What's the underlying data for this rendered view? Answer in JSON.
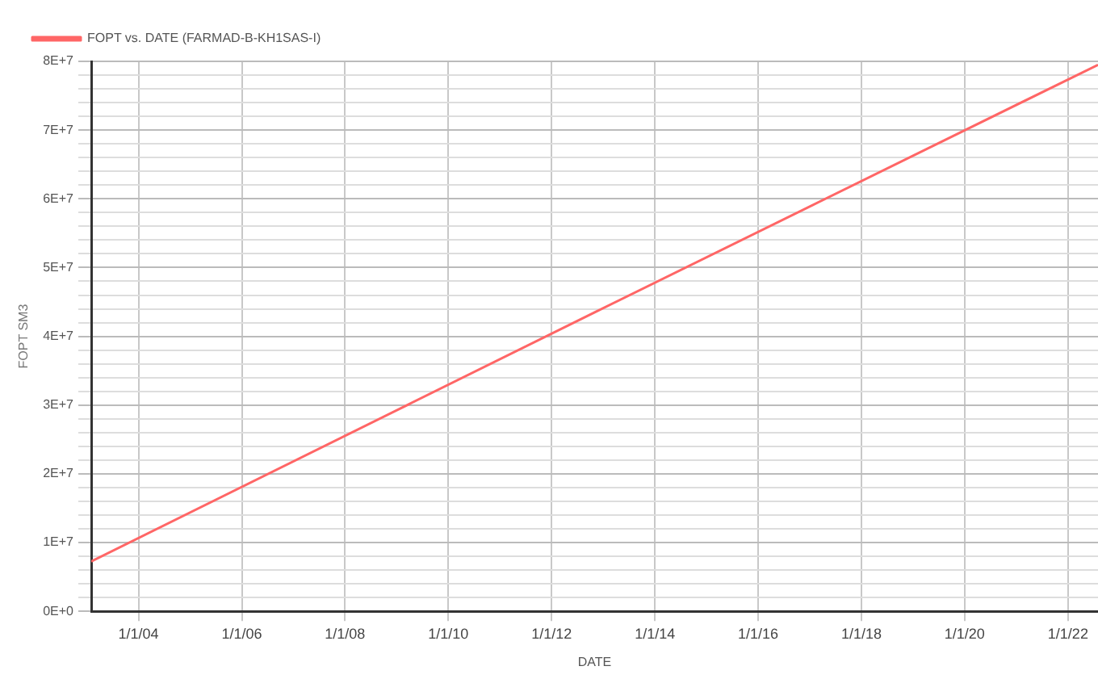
{
  "chart_data": {
    "type": "line",
    "xlabel": "DATE",
    "ylabel": "FOPT SM3",
    "legend": "top left",
    "grid": true,
    "marker": "none",
    "line_style": "solid",
    "x": [
      "2003-02",
      "2012-11",
      "2022-08"
    ],
    "series": [
      {
        "name": "FOPT vs. DATE (FARMAD-B-KH1SAS-I)",
        "color": "#ff6666",
        "values": [
          7250000,
          43500000,
          79500000
        ]
      }
    ],
    "xlim": [
      "2003-02",
      "2022-08"
    ],
    "xticks": [
      {
        "value": "2004-01-01",
        "label": "1/1/04"
      },
      {
        "value": "2006-01-01",
        "label": "1/1/06"
      },
      {
        "value": "2008-01-01",
        "label": "1/1/08"
      },
      {
        "value": "2010-01-01",
        "label": "1/1/10"
      },
      {
        "value": "2012-01-01",
        "label": "1/1/12"
      },
      {
        "value": "2014-01-01",
        "label": "1/1/14"
      },
      {
        "value": "2016-01-01",
        "label": "1/1/16"
      },
      {
        "value": "2018-01-01",
        "label": "1/1/18"
      },
      {
        "value": "2020-01-01",
        "label": "1/1/20"
      },
      {
        "value": "2022-01-01",
        "label": "1/1/22"
      }
    ],
    "ylim": [
      0,
      80000000
    ],
    "yticks": [
      {
        "value": 0,
        "label": "0E+0"
      },
      {
        "value": 2000000,
        "label": null
      },
      {
        "value": 4000000,
        "label": null
      },
      {
        "value": 6000000,
        "label": null
      },
      {
        "value": 8000000,
        "label": null
      },
      {
        "value": 10000000,
        "label": "1E+7"
      },
      {
        "value": 12000000,
        "label": null
      },
      {
        "value": 14000000,
        "label": null
      },
      {
        "value": 16000000,
        "label": null
      },
      {
        "value": 18000000,
        "label": null
      },
      {
        "value": 20000000,
        "label": "2E+7"
      },
      {
        "value": 22000000,
        "label": null
      },
      {
        "value": 24000000,
        "label": null
      },
      {
        "value": 26000000,
        "label": null
      },
      {
        "value": 28000000,
        "label": null
      },
      {
        "value": 30000000,
        "label": "3E+7"
      },
      {
        "value": 32000000,
        "label": null
      },
      {
        "value": 34000000,
        "label": null
      },
      {
        "value": 36000000,
        "label": null
      },
      {
        "value": 38000000,
        "label": null
      },
      {
        "value": 40000000,
        "label": "4E+7"
      },
      {
        "value": 42000000,
        "label": null
      },
      {
        "value": 44000000,
        "label": null
      },
      {
        "value": 46000000,
        "label": null
      },
      {
        "value": 48000000,
        "label": null
      },
      {
        "value": 50000000,
        "label": "5E+7"
      },
      {
        "value": 52000000,
        "label": null
      },
      {
        "value": 54000000,
        "label": null
      },
      {
        "value": 56000000,
        "label": null
      },
      {
        "value": 58000000,
        "label": null
      },
      {
        "value": 60000000,
        "label": "6E+7"
      },
      {
        "value": 62000000,
        "label": null
      },
      {
        "value": 64000000,
        "label": null
      },
      {
        "value": 66000000,
        "label": null
      },
      {
        "value": 68000000,
        "label": null
      },
      {
        "value": 70000000,
        "label": "7E+7"
      },
      {
        "value": 72000000,
        "label": null
      },
      {
        "value": 74000000,
        "label": null
      },
      {
        "value": 76000000,
        "label": null
      },
      {
        "value": 78000000,
        "label": null
      },
      {
        "value": 80000000,
        "label": "8E+7"
      }
    ]
  }
}
